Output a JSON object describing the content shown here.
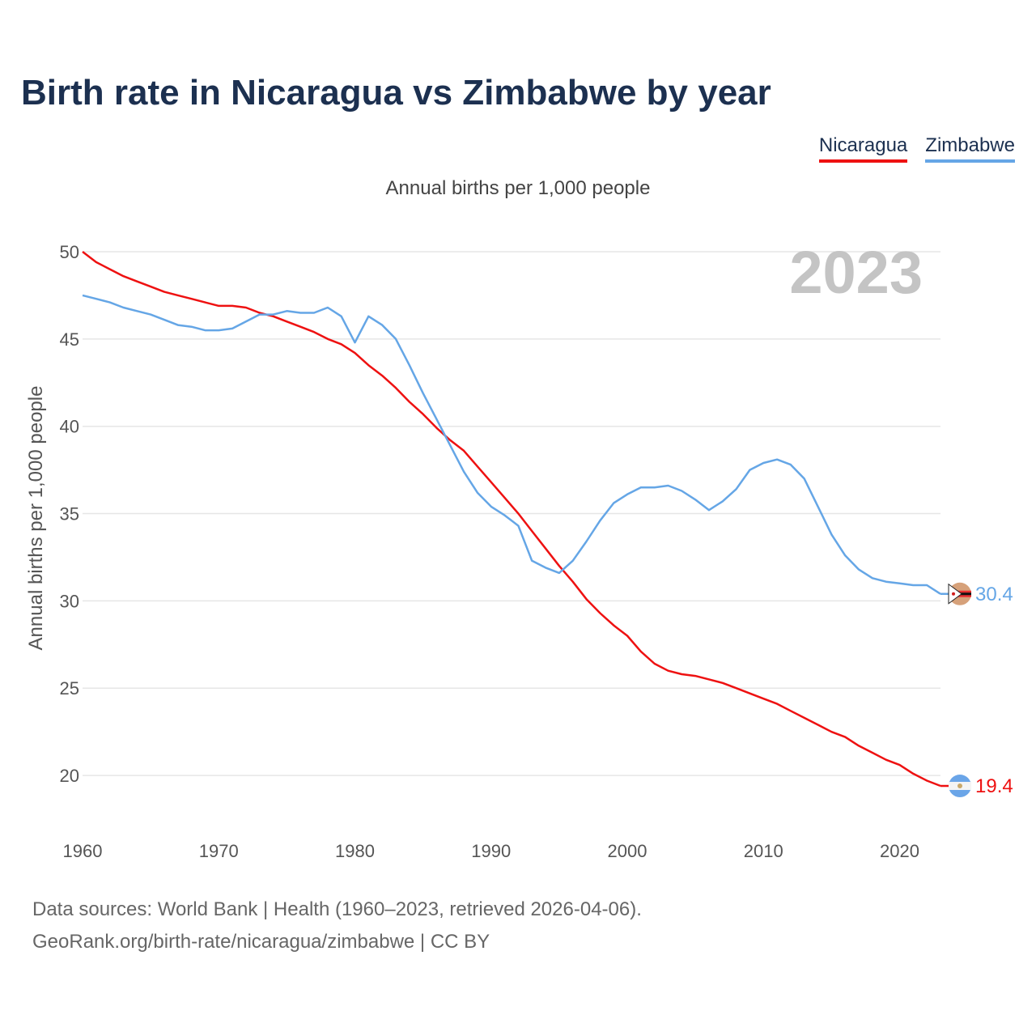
{
  "title": "Birth rate in Nicaragua vs Zimbabwe by year",
  "legend": [
    {
      "name": "Nicaragua",
      "color": "#ee1111"
    },
    {
      "name": "Zimbabwe",
      "color": "#65a6e6"
    }
  ],
  "footer": {
    "line1": "Data sources: World Bank | Health (1960–2023, retrieved 2026-04-06).",
    "line2": "GeoRank.org/birth-rate/nicaragua/zimbabwe | CC BY"
  },
  "chart_data": {
    "type": "line",
    "title": "Birth rate in Nicaragua vs Zimbabwe by year",
    "subtitle": "Annual births per 1,000 people",
    "xlabel": "",
    "ylabel": "Annual births per 1,000 people",
    "year_highlight": "2023",
    "xlim": [
      1960,
      2023
    ],
    "ylim": [
      17.5,
      50
    ],
    "x_ticks": [
      1960,
      1970,
      1980,
      1990,
      2000,
      2010,
      2020
    ],
    "y_ticks": [
      20,
      25,
      30,
      35,
      40,
      45,
      50
    ],
    "grid": true,
    "legend_position": "top-right",
    "x": [
      1960,
      1961,
      1962,
      1963,
      1964,
      1965,
      1966,
      1967,
      1968,
      1969,
      1970,
      1971,
      1972,
      1973,
      1974,
      1975,
      1976,
      1977,
      1978,
      1979,
      1980,
      1981,
      1982,
      1983,
      1984,
      1985,
      1986,
      1987,
      1988,
      1989,
      1990,
      1991,
      1992,
      1993,
      1994,
      1995,
      1996,
      1997,
      1998,
      1999,
      2000,
      2001,
      2002,
      2003,
      2004,
      2005,
      2006,
      2007,
      2008,
      2009,
      2010,
      2011,
      2012,
      2013,
      2014,
      2015,
      2016,
      2017,
      2018,
      2019,
      2020,
      2021,
      2022,
      2023
    ],
    "series": [
      {
        "name": "Nicaragua",
        "color": "#ee1111",
        "end_label": "19.4",
        "values": [
          50.0,
          49.4,
          49.0,
          48.6,
          48.3,
          48.0,
          47.7,
          47.5,
          47.3,
          47.1,
          46.9,
          46.9,
          46.8,
          46.5,
          46.3,
          46.0,
          45.7,
          45.4,
          45.0,
          44.7,
          44.2,
          43.5,
          42.9,
          42.2,
          41.4,
          40.7,
          39.9,
          39.2,
          38.6,
          37.7,
          36.8,
          35.9,
          35.0,
          34.0,
          33.0,
          32.0,
          31.1,
          30.1,
          29.3,
          28.6,
          28.0,
          27.1,
          26.4,
          26.0,
          25.8,
          25.7,
          25.5,
          25.3,
          25.0,
          24.7,
          24.4,
          24.1,
          23.7,
          23.3,
          22.9,
          22.5,
          22.2,
          21.7,
          21.3,
          20.9,
          20.6,
          20.1,
          19.7,
          19.4
        ]
      },
      {
        "name": "Zimbabwe",
        "color": "#65a6e6",
        "end_label": "30.4",
        "values": [
          47.5,
          47.3,
          47.1,
          46.8,
          46.6,
          46.4,
          46.1,
          45.8,
          45.7,
          45.5,
          45.5,
          45.6,
          46.0,
          46.4,
          46.4,
          46.6,
          46.5,
          46.5,
          46.8,
          46.3,
          44.8,
          46.3,
          45.8,
          45.0,
          43.5,
          41.9,
          40.4,
          38.9,
          37.4,
          36.2,
          35.4,
          34.9,
          34.3,
          32.3,
          31.9,
          31.6,
          32.3,
          33.4,
          34.6,
          35.6,
          36.1,
          36.5,
          36.5,
          36.6,
          36.3,
          35.8,
          35.2,
          35.7,
          36.4,
          37.5,
          37.9,
          38.1,
          37.8,
          37.0,
          35.4,
          33.8,
          32.6,
          31.8,
          31.3,
          31.1,
          31.0,
          30.9,
          30.9,
          30.4
        ]
      }
    ]
  }
}
